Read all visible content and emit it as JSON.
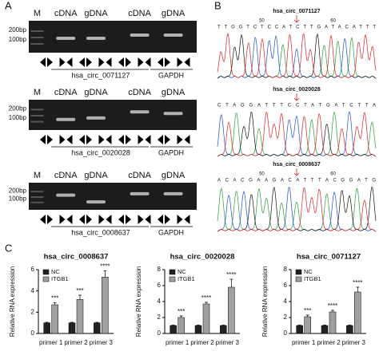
{
  "panel_labels": [
    "A",
    "B",
    "C"
  ],
  "gels": [
    {
      "lane_labels": [
        "M",
        "cDNA",
        "gDNA",
        "cDNA",
        "gDNA"
      ],
      "size_labels": [
        "200bp",
        "100bp"
      ],
      "target": "hsa_circ_0071127",
      "control": "GAPDH"
    },
    {
      "lane_labels": [
        "M",
        "cDNA",
        "gDNA",
        "cDNA",
        "gDNA"
      ],
      "size_labels": [
        "200bp",
        "100bp"
      ],
      "target": "hsa_circ_0020028",
      "control": "GAPDH"
    },
    {
      "lane_labels": [
        "M",
        "cDNA",
        "gDNA",
        "cDNA",
        "gDNA"
      ],
      "size_labels": [
        "200bp",
        "100bp"
      ],
      "target": "hsa_circ_0008637",
      "control": "GAPDH"
    }
  ],
  "chromatograms": [
    {
      "title": "hsa_circ_0071127",
      "sequence": "TTGGTCTCCATCTTGATACATTT",
      "ticks": [
        "50",
        "60"
      ]
    },
    {
      "title": "hsa_circ_0020028",
      "sequence": "CTAGGATTTCCTATGATCTTA",
      "ticks": []
    },
    {
      "title": "hsa_circ_0008637",
      "sequence": "ACACGAAGACATTTACGGATG",
      "ticks": [
        "50",
        "60"
      ]
    }
  ],
  "chart_data": [
    {
      "type": "bar",
      "title": "hsa_circ_0008637",
      "y_label": "Relative RNA expression",
      "categories": [
        "primer 1",
        "primer 2",
        "primer 3"
      ],
      "series": [
        {
          "name": "NC",
          "color": "#222222",
          "values": [
            1,
            1,
            1
          ],
          "errors": [
            0.05,
            0.05,
            0.05
          ]
        },
        {
          "name": "ITGB1",
          "color": "#a0a0a0",
          "values": [
            2.7,
            3.2,
            5.3
          ],
          "errors": [
            0.2,
            0.4,
            0.6
          ]
        }
      ],
      "annotations": [
        "***",
        "***",
        "****"
      ],
      "ylim": [
        0,
        6
      ],
      "yticks": [
        0,
        2,
        4,
        6
      ]
    },
    {
      "type": "bar",
      "title": "hsa_circ_0020028",
      "y_label": "Relative RNA expression",
      "categories": [
        "primer 1",
        "primer 2",
        "primer 3"
      ],
      "series": [
        {
          "name": "NC",
          "color": "#222222",
          "values": [
            1,
            1,
            1
          ],
          "errors": [
            0.05,
            0.05,
            0.05
          ]
        },
        {
          "name": "ITGB1",
          "color": "#a0a0a0",
          "values": [
            2.0,
            3.7,
            5.8
          ],
          "errors": [
            0.2,
            0.2,
            1.0
          ]
        }
      ],
      "annotations": [
        "***",
        "****",
        "****"
      ],
      "ylim": [
        0,
        8
      ],
      "yticks": [
        0,
        2,
        4,
        6,
        8
      ]
    },
    {
      "type": "bar",
      "title": "hsa_circ_0071127",
      "y_label": "Relative RNA expression",
      "categories": [
        "primer 1",
        "primer 2",
        "primer 3"
      ],
      "series": [
        {
          "name": "NC",
          "color": "#222222",
          "values": [
            1,
            1,
            1
          ],
          "errors": [
            0.05,
            0.05,
            0.05
          ]
        },
        {
          "name": "ITGB1",
          "color": "#a0a0a0",
          "values": [
            2.1,
            2.7,
            5.2
          ],
          "errors": [
            0.2,
            0.2,
            0.6
          ]
        }
      ],
      "annotations": [
        "***",
        "****",
        "****"
      ],
      "ylim": [
        0,
        8
      ],
      "yticks": [
        0,
        2,
        4,
        6,
        8
      ]
    }
  ]
}
